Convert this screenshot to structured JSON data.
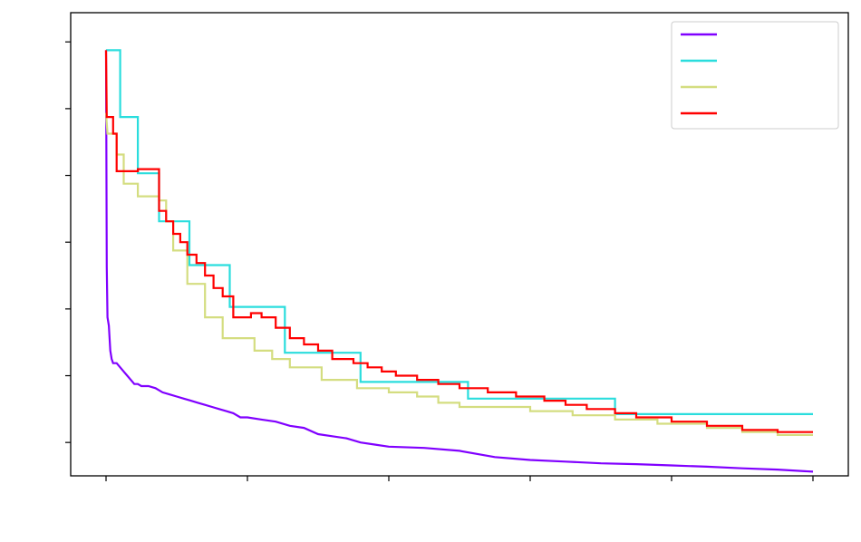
{
  "chart_data": {
    "type": "line",
    "title": "",
    "xlabel": "",
    "ylabel": "",
    "xlim": [
      -0.05,
      1.05
    ],
    "ylim": [
      -0.08,
      1.03
    ],
    "x_ticks": [
      0,
      0.2,
      0.4,
      0.6,
      0.8,
      1.0
    ],
    "y_ticks": [
      0.0,
      0.16,
      0.32,
      0.48,
      0.64,
      0.8,
      0.96
    ],
    "grid": false,
    "legend_position": "top-right",
    "series": [
      {
        "color": "#8000ff",
        "points": [
          [
            0,
            0.94
          ],
          [
            0.001,
            0.42
          ],
          [
            0.002,
            0.3
          ],
          [
            0.004,
            0.28
          ],
          [
            0.006,
            0.22
          ],
          [
            0.008,
            0.2
          ],
          [
            0.01,
            0.19
          ],
          [
            0.015,
            0.19
          ],
          [
            0.02,
            0.18
          ],
          [
            0.025,
            0.17
          ],
          [
            0.03,
            0.16
          ],
          [
            0.035,
            0.15
          ],
          [
            0.04,
            0.14
          ],
          [
            0.045,
            0.14
          ],
          [
            0.05,
            0.135
          ],
          [
            0.06,
            0.135
          ],
          [
            0.07,
            0.13
          ],
          [
            0.08,
            0.12
          ],
          [
            0.09,
            0.115
          ],
          [
            0.1,
            0.11
          ],
          [
            0.11,
            0.105
          ],
          [
            0.12,
            0.1
          ],
          [
            0.13,
            0.095
          ],
          [
            0.14,
            0.09
          ],
          [
            0.15,
            0.085
          ],
          [
            0.16,
            0.08
          ],
          [
            0.17,
            0.075
          ],
          [
            0.18,
            0.07
          ],
          [
            0.19,
            0.06
          ],
          [
            0.2,
            0.06
          ],
          [
            0.22,
            0.055
          ],
          [
            0.24,
            0.05
          ],
          [
            0.26,
            0.04
          ],
          [
            0.28,
            0.035
          ],
          [
            0.3,
            0.02
          ],
          [
            0.32,
            0.015
          ],
          [
            0.34,
            0.01
          ],
          [
            0.36,
            0.0
          ],
          [
            0.38,
            -0.005
          ],
          [
            0.4,
            -0.01
          ],
          [
            0.45,
            -0.013
          ],
          [
            0.5,
            -0.02
          ],
          [
            0.55,
            -0.035
          ],
          [
            0.6,
            -0.042
          ],
          [
            0.65,
            -0.046
          ],
          [
            0.7,
            -0.05
          ],
          [
            0.75,
            -0.052
          ],
          [
            0.8,
            -0.055
          ],
          [
            0.85,
            -0.058
          ],
          [
            0.9,
            -0.062
          ],
          [
            0.95,
            -0.065
          ],
          [
            1.0,
            -0.07
          ]
        ]
      },
      {
        "color": "#2adddd",
        "points": [
          [
            0,
            0.94
          ],
          [
            0.02,
            0.94
          ],
          [
            0.02,
            0.78
          ],
          [
            0.045,
            0.78
          ],
          [
            0.045,
            0.645
          ],
          [
            0.075,
            0.645
          ],
          [
            0.075,
            0.53
          ],
          [
            0.118,
            0.53
          ],
          [
            0.118,
            0.425
          ],
          [
            0.175,
            0.425
          ],
          [
            0.175,
            0.325
          ],
          [
            0.253,
            0.325
          ],
          [
            0.253,
            0.215
          ],
          [
            0.36,
            0.215
          ],
          [
            0.36,
            0.145
          ],
          [
            0.512,
            0.145
          ],
          [
            0.512,
            0.105
          ],
          [
            0.72,
            0.105
          ],
          [
            0.72,
            0.068
          ],
          [
            1.0,
            0.068
          ]
        ]
      },
      {
        "color": "#d4dd80",
        "points": [
          [
            0,
            0.79
          ],
          [
            0.002,
            0.74
          ],
          [
            0.015,
            0.74
          ],
          [
            0.015,
            0.69
          ],
          [
            0.025,
            0.69
          ],
          [
            0.025,
            0.62
          ],
          [
            0.045,
            0.62
          ],
          [
            0.045,
            0.59
          ],
          [
            0.075,
            0.59
          ],
          [
            0.075,
            0.58
          ],
          [
            0.085,
            0.58
          ],
          [
            0.085,
            0.53
          ],
          [
            0.095,
            0.53
          ],
          [
            0.095,
            0.46
          ],
          [
            0.115,
            0.46
          ],
          [
            0.115,
            0.38
          ],
          [
            0.14,
            0.38
          ],
          [
            0.14,
            0.3
          ],
          [
            0.165,
            0.3
          ],
          [
            0.165,
            0.25
          ],
          [
            0.21,
            0.25
          ],
          [
            0.21,
            0.22
          ],
          [
            0.235,
            0.22
          ],
          [
            0.235,
            0.2
          ],
          [
            0.26,
            0.2
          ],
          [
            0.26,
            0.18
          ],
          [
            0.305,
            0.18
          ],
          [
            0.305,
            0.15
          ],
          [
            0.355,
            0.15
          ],
          [
            0.355,
            0.13
          ],
          [
            0.4,
            0.13
          ],
          [
            0.4,
            0.12
          ],
          [
            0.44,
            0.12
          ],
          [
            0.44,
            0.11
          ],
          [
            0.47,
            0.11
          ],
          [
            0.47,
            0.095
          ],
          [
            0.5,
            0.095
          ],
          [
            0.5,
            0.085
          ],
          [
            0.6,
            0.085
          ],
          [
            0.6,
            0.075
          ],
          [
            0.66,
            0.075
          ],
          [
            0.66,
            0.065
          ],
          [
            0.72,
            0.065
          ],
          [
            0.72,
            0.055
          ],
          [
            0.78,
            0.055
          ],
          [
            0.78,
            0.045
          ],
          [
            0.85,
            0.045
          ],
          [
            0.85,
            0.035
          ],
          [
            0.9,
            0.035
          ],
          [
            0.9,
            0.025
          ],
          [
            0.95,
            0.025
          ],
          [
            0.95,
            0.018
          ],
          [
            1.0,
            0.018
          ]
        ]
      },
      {
        "color": "#ff0000",
        "points": [
          [
            0,
            0.94
          ],
          [
            0.001,
            0.78
          ],
          [
            0.01,
            0.78
          ],
          [
            0.01,
            0.74
          ],
          [
            0.015,
            0.74
          ],
          [
            0.015,
            0.65
          ],
          [
            0.045,
            0.65
          ],
          [
            0.045,
            0.655
          ],
          [
            0.075,
            0.655
          ],
          [
            0.075,
            0.555
          ],
          [
            0.085,
            0.555
          ],
          [
            0.085,
            0.53
          ],
          [
            0.095,
            0.53
          ],
          [
            0.095,
            0.5
          ],
          [
            0.105,
            0.5
          ],
          [
            0.105,
            0.48
          ],
          [
            0.115,
            0.48
          ],
          [
            0.115,
            0.45
          ],
          [
            0.128,
            0.45
          ],
          [
            0.128,
            0.43
          ],
          [
            0.14,
            0.43
          ],
          [
            0.14,
            0.4
          ],
          [
            0.152,
            0.4
          ],
          [
            0.152,
            0.37
          ],
          [
            0.165,
            0.37
          ],
          [
            0.165,
            0.35
          ],
          [
            0.18,
            0.35
          ],
          [
            0.18,
            0.3
          ],
          [
            0.205,
            0.3
          ],
          [
            0.205,
            0.31
          ],
          [
            0.22,
            0.31
          ],
          [
            0.22,
            0.3
          ],
          [
            0.24,
            0.3
          ],
          [
            0.24,
            0.275
          ],
          [
            0.26,
            0.275
          ],
          [
            0.26,
            0.25
          ],
          [
            0.28,
            0.25
          ],
          [
            0.28,
            0.235
          ],
          [
            0.3,
            0.235
          ],
          [
            0.3,
            0.22
          ],
          [
            0.32,
            0.22
          ],
          [
            0.32,
            0.2
          ],
          [
            0.35,
            0.2
          ],
          [
            0.35,
            0.19
          ],
          [
            0.37,
            0.19
          ],
          [
            0.37,
            0.18
          ],
          [
            0.39,
            0.18
          ],
          [
            0.39,
            0.17
          ],
          [
            0.41,
            0.17
          ],
          [
            0.41,
            0.16
          ],
          [
            0.44,
            0.16
          ],
          [
            0.44,
            0.15
          ],
          [
            0.47,
            0.15
          ],
          [
            0.47,
            0.14
          ],
          [
            0.5,
            0.14
          ],
          [
            0.5,
            0.13
          ],
          [
            0.54,
            0.13
          ],
          [
            0.54,
            0.12
          ],
          [
            0.58,
            0.12
          ],
          [
            0.58,
            0.11
          ],
          [
            0.62,
            0.11
          ],
          [
            0.62,
            0.1
          ],
          [
            0.65,
            0.1
          ],
          [
            0.65,
            0.09
          ],
          [
            0.68,
            0.09
          ],
          [
            0.68,
            0.08
          ],
          [
            0.72,
            0.08
          ],
          [
            0.72,
            0.07
          ],
          [
            0.75,
            0.07
          ],
          [
            0.75,
            0.06
          ],
          [
            0.8,
            0.06
          ],
          [
            0.8,
            0.05
          ],
          [
            0.85,
            0.05
          ],
          [
            0.85,
            0.04
          ],
          [
            0.9,
            0.04
          ],
          [
            0.9,
            0.03
          ],
          [
            0.95,
            0.03
          ],
          [
            0.95,
            0.025
          ],
          [
            1.0,
            0.025
          ]
        ]
      }
    ]
  }
}
